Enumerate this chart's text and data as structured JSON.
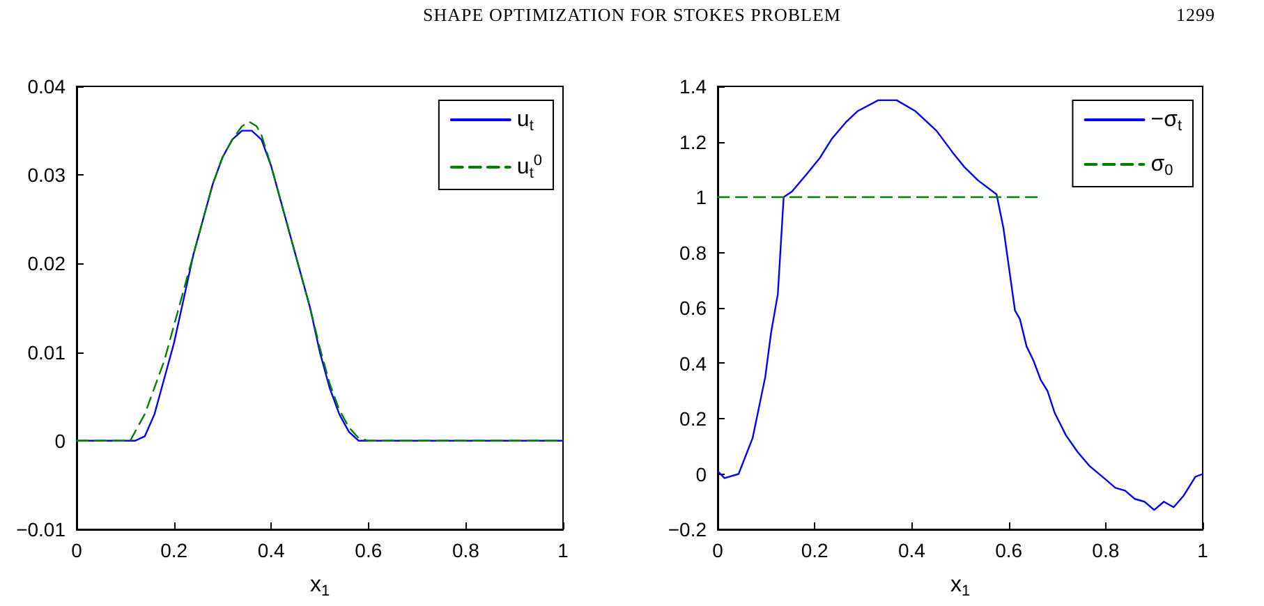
{
  "chart_data": [
    {
      "type": "line",
      "annotations": [
        "SHAPE OPTIMIZATION FOR STOKES PROBLEM",
        "1299"
      ],
      "xlabel": "x$_{1}$",
      "xlim": [
        0,
        1
      ],
      "xticks": [
        0,
        0.2,
        0.4,
        0.6,
        0.8,
        1
      ],
      "ylim": [
        -0.01,
        0.04
      ],
      "yticks": [
        {
          "value": -0.01,
          "label": "−0.01"
        },
        0,
        0.01,
        0.02,
        0.03,
        0.04
      ],
      "grid": false,
      "legend": "top right",
      "marker": "none",
      "series": [
        {
          "name": "u$_{t}$",
          "color": "#0000ff",
          "line_style": "solid",
          "x": [
            0,
            0.12,
            0.14,
            0.16,
            0.18,
            0.2,
            0.22,
            0.24,
            0.26,
            0.28,
            0.3,
            0.32,
            0.34,
            0.36,
            0.38,
            0.4,
            0.42,
            0.44,
            0.46,
            0.48,
            0.5,
            0.52,
            0.54,
            0.56,
            0.58,
            0.6,
            1
          ],
          "values": [
            0,
            0,
            0.0005,
            0.003,
            0.007,
            0.011,
            0.016,
            0.021,
            0.025,
            0.029,
            0.032,
            0.034,
            0.035,
            0.035,
            0.034,
            0.031,
            0.027,
            0.023,
            0.019,
            0.015,
            0.01,
            0.006,
            0.003,
            0.001,
            0,
            0,
            0
          ]
        },
        {
          "name": "u$_{t}$$^{0}$",
          "color": "#008000",
          "line_style": "dashed",
          "x": [
            0,
            0.11,
            0.12,
            0.14,
            0.16,
            0.18,
            0.2,
            0.22,
            0.24,
            0.26,
            0.28,
            0.3,
            0.32,
            0.34,
            0.355,
            0.37,
            0.38,
            0.4,
            0.42,
            0.44,
            0.46,
            0.48,
            0.5,
            0.52,
            0.54,
            0.56,
            0.58,
            0.6,
            1
          ],
          "values": [
            0,
            0,
            0.001,
            0.003,
            0.006,
            0.009,
            0.013,
            0.017,
            0.021,
            0.025,
            0.029,
            0.032,
            0.034,
            0.0355,
            0.036,
            0.0355,
            0.0345,
            0.031,
            0.027,
            0.023,
            0.019,
            0.015,
            0.0105,
            0.0065,
            0.0035,
            0.0015,
            0.0003,
            0,
            0
          ]
        }
      ]
    },
    {
      "type": "line",
      "xlabel": "x$_{1}$",
      "xlim": [
        0,
        1
      ],
      "xticks": [
        0,
        0.2,
        0.4,
        0.6,
        0.8,
        1
      ],
      "ylim": [
        -0.2,
        1.4
      ],
      "yticks": [
        {
          "value": -0.2,
          "label": "−0.2"
        },
        0,
        0.2,
        0.4,
        0.6,
        0.8,
        1,
        1.2,
        1.4
      ],
      "grid": false,
      "legend": "top right",
      "marker": "none",
      "series": [
        {
          "name": "−σ$_{t}$",
          "color": "#0000ff",
          "line_style": "solid",
          "x": [
            0,
            0.014,
            0.043,
            0.072,
            0.098,
            0.11,
            0.124,
            0.136,
            0.153,
            0.182,
            0.21,
            0.235,
            0.264,
            0.288,
            0.331,
            0.369,
            0.408,
            0.451,
            0.485,
            0.508,
            0.537,
            0.575,
            0.589,
            0.613,
            0.623,
            0.637,
            0.651,
            0.666,
            0.68,
            0.695,
            0.718,
            0.742,
            0.766,
            0.8,
            0.82,
            0.84,
            0.86,
            0.88,
            0.9,
            0.92,
            0.94,
            0.96,
            0.985,
            1
          ],
          "values": [
            0.01,
            -0.015,
            0,
            0.13,
            0.35,
            0.51,
            0.65,
            1,
            1.02,
            1.08,
            1.14,
            1.21,
            1.27,
            1.31,
            1.35,
            1.35,
            1.31,
            1.24,
            1.16,
            1.11,
            1.06,
            1.01,
            0.89,
            0.59,
            0.56,
            0.46,
            0.41,
            0.34,
            0.3,
            0.22,
            0.14,
            0.08,
            0.03,
            -0.02,
            -0.05,
            -0.06,
            -0.09,
            -0.1,
            -0.13,
            -0.1,
            -0.12,
            -0.08,
            -0.01,
            0
          ]
        },
        {
          "name": "σ$_{0}$",
          "color": "#008000",
          "line_style": "dashed",
          "x": [
            0,
            0.66
          ],
          "values": [
            1,
            1
          ]
        }
      ]
    }
  ]
}
